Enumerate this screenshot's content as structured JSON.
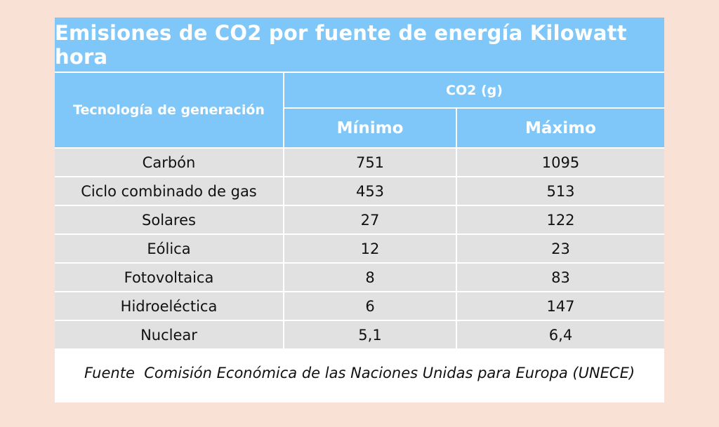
{
  "title": "Emisiones de CO2 por fuente de energía Kilowatt hora",
  "header": {
    "technology": "Tecnología de generación",
    "co2": "CO2 (g)",
    "min": "Mínimo",
    "max": "Máximo"
  },
  "rows": [
    {
      "tech": "Carbón",
      "min": "751",
      "max": "1095"
    },
    {
      "tech": "Ciclo combinado de gas",
      "min": "453",
      "max": "513"
    },
    {
      "tech": "Solares",
      "min": "27",
      "max": "122"
    },
    {
      "tech": "Eólica",
      "min": "12",
      "max": "23"
    },
    {
      "tech": "Fotovoltaica",
      "min": "8",
      "max": "83"
    },
    {
      "tech": "Hidroeléctica",
      "min": "6",
      "max": "147"
    },
    {
      "tech": "Nuclear",
      "min": "5,1",
      "max": "6,4"
    }
  ],
  "source": "Fuente  Comisión Económica de las Naciones Unidas para Europa (UNECE)",
  "colors": {
    "background": "#f9e1d6",
    "header": "#7fc7f9",
    "row": "#e1e1e1"
  }
}
